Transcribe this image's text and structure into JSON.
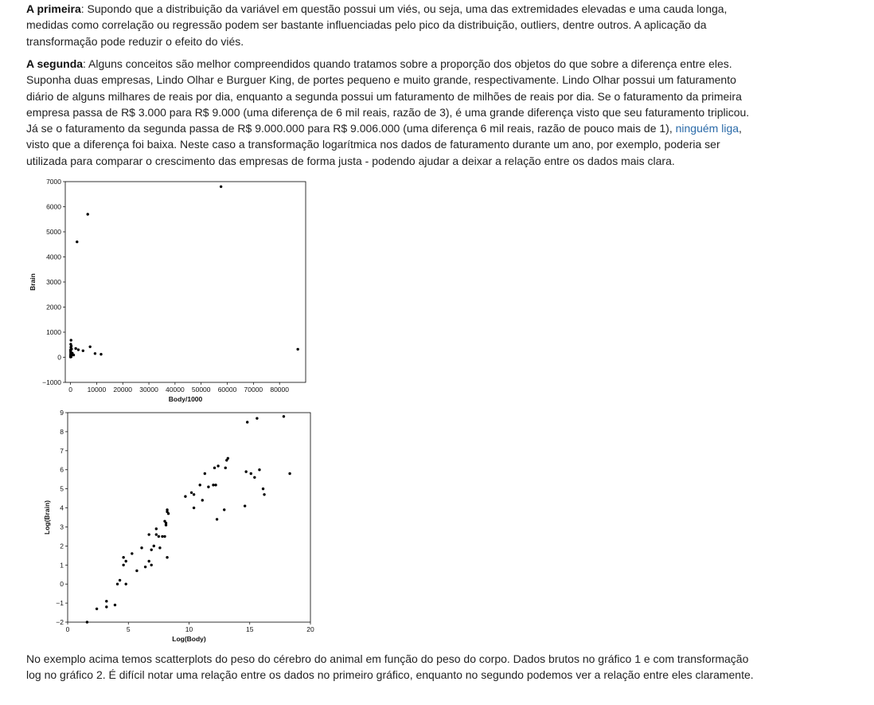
{
  "paragraphs": {
    "p1_bold": "A primeira",
    "p1_text": ": Supondo que a distribuição da variável em questão possui um viés, ou seja, uma das extremidades elevadas e uma cauda longa, medidas como correlação ou regressão podem ser bastante influenciadas pelo pico da distribuição, outliers, dentre outros. A aplicação da transformação pode reduzir o efeito do viés.",
    "p2_bold": "A segunda",
    "p2_text_a": ": Alguns conceitos são melhor compreendidos quando tratamos sobre a proporção dos objetos do que sobre a diferença entre eles. Suponha duas empresas, Lindo Olhar e Burguer King, de portes pequeno e muito grande, respectivamente. Lindo Olhar possui um faturamento diário de alguns milhares de reais por dia, enquanto a segunda possui um faturamento de milhões de reais por dia. Se o faturamento da primeira empresa passa de R$ 3.000 para R$ 9.000 (uma diferença de 6 mil reais, razão de 3), é uma grande diferença visto que seu faturamento triplicou. Já se o faturamento da segunda passa de R$ 9.000.000 para R$ 9.006.000 (uma diferença 6 mil reais, razão de pouco mais de 1), ",
    "p2_link": "ninguém liga",
    "p2_text_b": ", visto que a diferença foi baixa. Neste caso a transformação logarítmica nos dados de faturamento durante um ano, por exemplo, poderia ser utilizada para comparar o crescimento das empresas de forma justa - podendo ajudar a deixar a relação entre os dados mais clara.",
    "p3_text": "No exemplo acima temos scatterplots do peso do cérebro do animal em função do peso do corpo. Dados brutos no gráfico 1 e com transformação log no gráfico 2. É difícil notar uma relação entre os dados no primeiro gráfico, enquanto no segundo podemos ver a relação entre eles claramente."
  },
  "colors": {
    "link": "#2a6aa8",
    "text": "#222222",
    "points": "#000000"
  },
  "chart_data": [
    {
      "type": "scatter",
      "xlabel": "Body/1000",
      "ylabel": "Brain",
      "xlim": [
        -2000,
        90000
      ],
      "ylim": [
        -1000,
        7000
      ],
      "xticks": [
        0,
        10000,
        20000,
        30000,
        40000,
        50000,
        60000,
        70000,
        80000
      ],
      "xtick_labels": [
        "0",
        "10000",
        "20000",
        "30000",
        "40000",
        "50000",
        "60000",
        "70000",
        "80000"
      ],
      "yticks": [
        -1000,
        0,
        1000,
        2000,
        3000,
        4000,
        5000,
        6000,
        7000
      ],
      "ytick_labels": [
        "−1000",
        "0",
        "1000",
        "2000",
        "3000",
        "4000",
        "5000",
        "6000",
        "7000"
      ],
      "grid": false,
      "points": [
        [
          57600,
          6800
        ],
        [
          6600,
          5700
        ],
        [
          2500,
          4600
        ],
        [
          87000,
          320
        ],
        [
          7500,
          420
        ],
        [
          9400,
          150
        ],
        [
          11700,
          120
        ],
        [
          2000,
          350
        ],
        [
          3000,
          300
        ],
        [
          4800,
          260
        ],
        [
          200,
          680
        ],
        [
          100,
          520
        ],
        [
          300,
          450
        ],
        [
          150,
          400
        ],
        [
          400,
          330
        ],
        [
          50,
          250
        ],
        [
          80,
          180
        ],
        [
          60,
          120
        ],
        [
          500,
          100
        ],
        [
          30,
          60
        ],
        [
          20,
          30
        ],
        [
          10,
          10
        ],
        [
          120,
          220
        ],
        [
          700,
          160
        ],
        [
          1200,
          90
        ],
        [
          250,
          20
        ],
        [
          40,
          300
        ],
        [
          90,
          80
        ]
      ]
    },
    {
      "type": "scatter",
      "xlabel": "Log(Body)",
      "ylabel": "Log(Brain)",
      "xlim": [
        0,
        20
      ],
      "ylim": [
        -2,
        9
      ],
      "xticks": [
        0,
        5,
        10,
        15,
        20
      ],
      "xtick_labels": [
        "0",
        "5",
        "10",
        "15",
        "20"
      ],
      "yticks": [
        -2,
        -1,
        0,
        1,
        2,
        3,
        4,
        5,
        6,
        7,
        8,
        9
      ],
      "ytick_labels": [
        "−2",
        "−1",
        "0",
        "1",
        "2",
        "3",
        "4",
        "5",
        "6",
        "7",
        "8",
        "9"
      ],
      "grid": false,
      "points": [
        [
          1.6,
          -2.0
        ],
        [
          2.4,
          -1.3
        ],
        [
          3.2,
          -0.9
        ],
        [
          3.2,
          -1.2
        ],
        [
          3.9,
          -1.1
        ],
        [
          4.1,
          0.0
        ],
        [
          4.3,
          0.2
        ],
        [
          4.6,
          1.4
        ],
        [
          4.6,
          1.0
        ],
        [
          4.8,
          1.2
        ],
        [
          4.8,
          0.0
        ],
        [
          5.3,
          1.6
        ],
        [
          5.7,
          0.7
        ],
        [
          6.1,
          1.9
        ],
        [
          6.4,
          0.9
        ],
        [
          6.7,
          1.2
        ],
        [
          6.7,
          2.6
        ],
        [
          6.9,
          1.8
        ],
        [
          6.9,
          1.0
        ],
        [
          7.1,
          2.0
        ],
        [
          7.3,
          2.6
        ],
        [
          7.3,
          2.9
        ],
        [
          7.5,
          2.5
        ],
        [
          7.6,
          1.9
        ],
        [
          7.8,
          2.5
        ],
        [
          8.0,
          3.3
        ],
        [
          8.0,
          2.5
        ],
        [
          8.1,
          3.1
        ],
        [
          8.2,
          3.9
        ],
        [
          8.2,
          3.8
        ],
        [
          8.3,
          3.7
        ],
        [
          8.2,
          1.4
        ],
        [
          8.1,
          3.2
        ],
        [
          9.7,
          4.6
        ],
        [
          10.2,
          4.8
        ],
        [
          10.4,
          4.7
        ],
        [
          10.4,
          4.0
        ],
        [
          10.9,
          5.2
        ],
        [
          11.1,
          4.4
        ],
        [
          11.3,
          5.8
        ],
        [
          11.6,
          5.1
        ],
        [
          12.0,
          5.2
        ],
        [
          12.1,
          6.1
        ],
        [
          12.2,
          5.2
        ],
        [
          12.3,
          3.4
        ],
        [
          12.4,
          6.2
        ],
        [
          12.9,
          3.9
        ],
        [
          13.0,
          6.1
        ],
        [
          13.1,
          6.5
        ],
        [
          13.2,
          6.6
        ],
        [
          14.6,
          4.1
        ],
        [
          14.7,
          5.9
        ],
        [
          14.8,
          8.5
        ],
        [
          15.1,
          5.8
        ],
        [
          15.4,
          5.6
        ],
        [
          15.6,
          8.7
        ],
        [
          15.8,
          6.0
        ],
        [
          16.1,
          5.0
        ],
        [
          16.2,
          4.7
        ],
        [
          17.8,
          8.8
        ],
        [
          18.3,
          5.8
        ]
      ]
    }
  ]
}
